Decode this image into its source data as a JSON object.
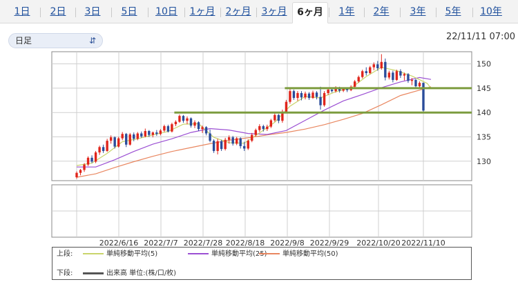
{
  "tabs": [
    {
      "label": "1日",
      "active": false
    },
    {
      "label": "2日",
      "active": false
    },
    {
      "label": "3日",
      "active": false
    },
    {
      "label": "5日",
      "active": false
    },
    {
      "label": "10日",
      "active": false
    },
    {
      "label": "1ヶ月",
      "active": false
    },
    {
      "label": "2ヶ月",
      "active": false
    },
    {
      "label": "3ヶ月",
      "active": false
    },
    {
      "label": "6ヶ月",
      "active": true
    },
    {
      "label": "1年",
      "active": false
    },
    {
      "label": "2年",
      "active": false
    },
    {
      "label": "3年",
      "active": false
    },
    {
      "label": "5年",
      "active": false
    },
    {
      "label": "10年",
      "active": false
    }
  ],
  "controls": {
    "interval_select": "日足",
    "timestamp": "22/11/11 07:00"
  },
  "colors": {
    "tab_link": "#1e4f9c",
    "up_candle": "#e0251b",
    "down_candle": "#2a4c9a",
    "sma5": "#c9d46a",
    "sma25": "#9b4fd3",
    "sma50": "#e9865f",
    "level_lines": "#7c9c3e"
  },
  "legend": {
    "upper_label": "上段:",
    "lower_label": "下段:",
    "sma5": "単純移動平均(5)",
    "sma25": "単純移動平均(25)",
    "sma50": "単純移動平均(50)",
    "volume": "出来高 単位:(株/口/枚)"
  },
  "chart_data": {
    "type": "candlestick",
    "x_tick_labels": [
      "2022/6/16",
      "2022/7/7",
      "2022/7/28",
      "2022/8/18",
      "2022/9/8",
      "2022/9/29",
      "2022/10/20",
      "2022/11/10"
    ],
    "y_tick_labels": [
      130,
      135,
      140,
      145,
      150
    ],
    "ylim": [
      126,
      152.5
    ],
    "horizontal_levels": [
      {
        "value": 145,
        "from": "2022/9/9"
      },
      {
        "value": 140,
        "from": "2022/7/5"
      }
    ],
    "ohlc": [
      [
        126.7,
        127.9,
        126.4,
        127.6
      ],
      [
        127.6,
        128.4,
        127.1,
        128.2
      ],
      [
        128.2,
        129.6,
        127.8,
        129.3
      ],
      [
        129.3,
        131.0,
        129.0,
        130.7
      ],
      [
        130.7,
        131.2,
        129.6,
        129.9
      ],
      [
        129.9,
        132.1,
        129.6,
        131.8
      ],
      [
        131.8,
        133.2,
        131.3,
        132.9
      ],
      [
        132.9,
        133.4,
        131.7,
        132.1
      ],
      [
        132.1,
        134.6,
        131.9,
        134.2
      ],
      [
        134.2,
        135.3,
        133.6,
        134.9
      ],
      [
        134.9,
        135.1,
        132.6,
        133.0
      ],
      [
        133.0,
        135.0,
        132.8,
        134.7
      ],
      [
        134.7,
        136.0,
        134.3,
        135.6
      ],
      [
        135.6,
        135.8,
        132.9,
        133.4
      ],
      [
        133.4,
        135.8,
        133.2,
        135.5
      ],
      [
        135.5,
        135.9,
        134.1,
        134.6
      ],
      [
        134.6,
        136.0,
        134.3,
        135.7
      ],
      [
        135.7,
        136.1,
        134.8,
        135.1
      ],
      [
        135.1,
        136.7,
        134.9,
        136.2
      ],
      [
        136.2,
        136.4,
        135.0,
        135.4
      ],
      [
        135.4,
        136.1,
        134.9,
        135.9
      ],
      [
        135.9,
        136.4,
        135.2,
        135.6
      ],
      [
        135.6,
        136.6,
        135.3,
        136.3
      ],
      [
        136.3,
        137.5,
        136.0,
        137.2
      ],
      [
        137.2,
        137.5,
        135.9,
        136.1
      ],
      [
        136.1,
        137.9,
        135.9,
        137.6
      ],
      [
        137.6,
        138.4,
        137.2,
        138.1
      ],
      [
        138.1,
        139.6,
        137.9,
        139.3
      ],
      [
        139.3,
        139.5,
        137.9,
        138.3
      ],
      [
        138.3,
        139.2,
        137.6,
        138.8
      ],
      [
        138.8,
        139.0,
        136.9,
        137.3
      ],
      [
        137.3,
        138.4,
        136.8,
        138.0
      ],
      [
        138.0,
        138.2,
        136.2,
        136.6
      ],
      [
        136.6,
        137.3,
        135.8,
        137.0
      ],
      [
        137.0,
        137.2,
        135.3,
        135.7
      ],
      [
        135.7,
        136.5,
        133.9,
        134.2
      ],
      [
        134.2,
        134.5,
        131.7,
        132.1
      ],
      [
        132.1,
        134.6,
        131.4,
        134.1
      ],
      [
        134.1,
        134.4,
        132.1,
        132.5
      ],
      [
        132.5,
        134.8,
        132.2,
        134.4
      ],
      [
        134.4,
        135.3,
        133.6,
        134.9
      ],
      [
        134.9,
        135.2,
        133.2,
        133.6
      ],
      [
        133.6,
        135.0,
        133.3,
        134.7
      ],
      [
        134.7,
        134.9,
        132.6,
        133.1
      ],
      [
        133.1,
        134.0,
        132.1,
        132.6
      ],
      [
        132.6,
        134.5,
        132.3,
        134.2
      ],
      [
        134.2,
        135.8,
        133.9,
        135.4
      ],
      [
        135.4,
        136.7,
        135.1,
        136.4
      ],
      [
        136.4,
        137.6,
        136.0,
        137.2
      ],
      [
        137.2,
        137.5,
        136.1,
        136.6
      ],
      [
        136.6,
        137.5,
        136.2,
        137.1
      ],
      [
        137.1,
        138.7,
        136.8,
        138.4
      ],
      [
        138.4,
        139.8,
        138.1,
        139.5
      ],
      [
        139.5,
        139.7,
        137.8,
        138.3
      ],
      [
        138.3,
        140.6,
        137.9,
        140.2
      ],
      [
        140.2,
        142.6,
        139.9,
        142.2
      ],
      [
        142.2,
        144.8,
        141.8,
        144.4
      ],
      [
        144.4,
        144.7,
        142.6,
        143.0
      ],
      [
        143.0,
        144.4,
        142.4,
        144.0
      ],
      [
        144.0,
        144.4,
        142.5,
        143.1
      ],
      [
        143.1,
        144.3,
        142.7,
        143.9
      ],
      [
        143.9,
        144.2,
        142.6,
        143.0
      ],
      [
        143.0,
        144.5,
        142.8,
        144.1
      ],
      [
        144.1,
        144.4,
        142.7,
        143.2
      ],
      [
        143.2,
        145.3,
        140.6,
        141.5
      ],
      [
        141.5,
        144.4,
        141.2,
        144.0
      ],
      [
        144.0,
        145.1,
        143.6,
        144.7
      ],
      [
        144.7,
        145.1,
        144.1,
        144.4
      ],
      [
        144.4,
        145.4,
        144.1,
        145.1
      ],
      [
        145.1,
        145.3,
        144.1,
        144.5
      ],
      [
        144.5,
        145.2,
        144.2,
        144.9
      ],
      [
        144.9,
        145.1,
        144.2,
        144.6
      ],
      [
        144.6,
        145.6,
        144.4,
        145.3
      ],
      [
        145.3,
        146.7,
        145.1,
        146.4
      ],
      [
        146.4,
        147.6,
        146.1,
        147.3
      ],
      [
        147.3,
        148.8,
        147.0,
        148.5
      ],
      [
        148.5,
        149.3,
        147.6,
        148.1
      ],
      [
        148.1,
        149.6,
        147.9,
        149.3
      ],
      [
        149.3,
        150.3,
        148.7,
        149.9
      ],
      [
        149.9,
        150.6,
        148.6,
        149.1
      ],
      [
        149.1,
        152.0,
        148.8,
        150.4
      ],
      [
        150.4,
        151.1,
        146.6,
        147.2
      ],
      [
        147.2,
        148.6,
        146.8,
        148.2
      ],
      [
        148.2,
        148.6,
        146.2,
        146.7
      ],
      [
        146.7,
        148.8,
        146.5,
        148.5
      ],
      [
        148.5,
        148.9,
        147.1,
        147.6
      ],
      [
        147.6,
        148.2,
        146.6,
        147.9
      ],
      [
        147.9,
        148.1,
        146.1,
        146.5
      ],
      [
        146.5,
        147.1,
        145.6,
        146.7
      ],
      [
        146.7,
        146.9,
        145.0,
        145.4
      ],
      [
        145.4,
        146.4,
        144.9,
        146.1
      ],
      [
        146.1,
        146.2,
        139.9,
        140.4
      ]
    ],
    "sma5": [
      [
        0,
        129.1
      ],
      [
        4,
        129.6
      ],
      [
        8,
        131.6
      ],
      [
        12,
        134.0
      ],
      [
        16,
        134.6
      ],
      [
        20,
        135.4
      ],
      [
        24,
        136.1
      ],
      [
        28,
        137.6
      ],
      [
        32,
        137.7
      ],
      [
        36,
        134.9
      ],
      [
        40,
        133.8
      ],
      [
        44,
        133.7
      ],
      [
        48,
        135.8
      ],
      [
        52,
        138.0
      ],
      [
        56,
        141.3
      ],
      [
        60,
        143.3
      ],
      [
        64,
        143.0
      ],
      [
        68,
        144.3
      ],
      [
        72,
        145.0
      ],
      [
        76,
        147.4
      ],
      [
        80,
        149.3
      ],
      [
        84,
        148.6
      ],
      [
        88,
        147.5
      ],
      [
        92,
        146.0
      ],
      [
        93,
        145.0
      ]
    ],
    "sma25": [
      [
        0,
        128.8
      ],
      [
        5,
        128.8
      ],
      [
        10,
        130.3
      ],
      [
        15,
        132.0
      ],
      [
        20,
        133.5
      ],
      [
        25,
        134.6
      ],
      [
        30,
        135.9
      ],
      [
        35,
        136.7
      ],
      [
        40,
        136.4
      ],
      [
        45,
        135.7
      ],
      [
        50,
        135.5
      ],
      [
        55,
        136.3
      ],
      [
        60,
        138.4
      ],
      [
        65,
        140.5
      ],
      [
        70,
        142.4
      ],
      [
        75,
        143.7
      ],
      [
        80,
        145.1
      ],
      [
        85,
        146.3
      ],
      [
        90,
        147.2
      ],
      [
        93,
        146.8
      ]
    ],
    "sma50": [
      [
        0,
        126.7
      ],
      [
        5,
        127.4
      ],
      [
        10,
        128.7
      ],
      [
        15,
        129.9
      ],
      [
        20,
        131.0
      ],
      [
        25,
        132.0
      ],
      [
        30,
        132.8
      ],
      [
        35,
        133.6
      ],
      [
        40,
        134.3
      ],
      [
        45,
        134.8
      ],
      [
        50,
        135.4
      ],
      [
        55,
        135.9
      ],
      [
        60,
        136.6
      ],
      [
        65,
        137.5
      ],
      [
        70,
        138.6
      ],
      [
        75,
        139.8
      ],
      [
        80,
        141.6
      ],
      [
        85,
        143.5
      ],
      [
        90,
        144.6
      ],
      [
        93,
        145.3
      ]
    ]
  }
}
